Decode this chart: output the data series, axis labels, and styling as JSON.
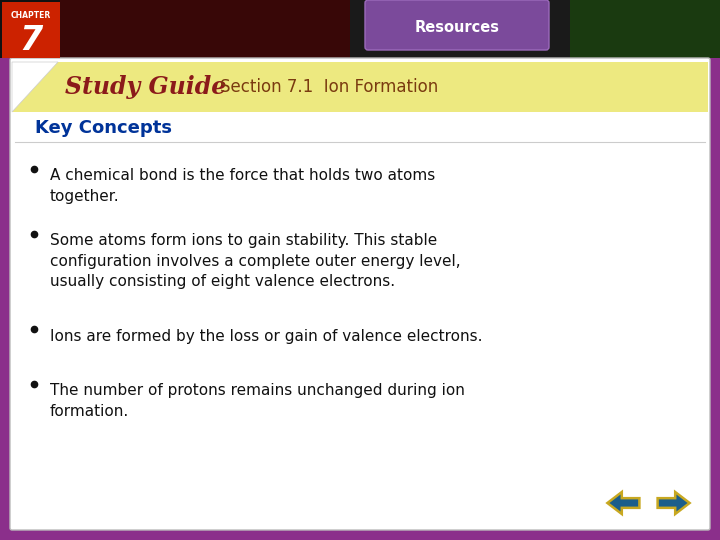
{
  "bg_outer": "#8B2F8B",
  "bg_slide": "#FFFFFF",
  "chapter_label": "CHAPTER",
  "chapter_number": "7",
  "study_guide_text": "Study Guide",
  "study_guide_color": "#8B1A1A",
  "study_guide_bg": "#EDE980",
  "section_text": "Section 7.1  Ion Formation",
  "section_color": "#7A3B10",
  "key_concepts_text": "Key Concepts",
  "key_concepts_color": "#003399",
  "resources_text": "Resources",
  "bullet_points": [
    "A chemical bond is the force that holds two atoms\ntogether.",
    "Some atoms form ions to gain stability. This stable\nconfiguration involves a complete outer energy level,\nusually consisting of eight valence electrons.",
    "Ions are formed by the loss or gain of valence electrons.",
    "The number of protons remains unchanged during ion\nformation."
  ],
  "bullet_color": "#111111",
  "arrow_color": "#1B5E8B",
  "arrow_border": "#C8A820"
}
